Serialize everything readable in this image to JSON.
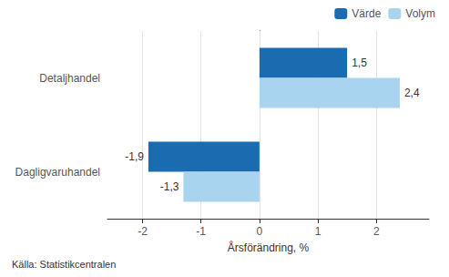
{
  "chart_data": {
    "type": "bar",
    "orientation": "horizontal",
    "categories": [
      "Detaljhandel",
      "Dagligvaruhandel"
    ],
    "series": [
      {
        "name": "Värde",
        "color": "#1B6BB0",
        "values": [
          1.5,
          -1.9
        ],
        "value_labels": [
          "1,5",
          "-1,9"
        ]
      },
      {
        "name": "Volym",
        "color": "#A8D4F0",
        "values": [
          2.4,
          -1.3
        ],
        "value_labels": [
          "2,4",
          "-1,3"
        ]
      }
    ],
    "xlabel": "Årsförändring, %",
    "xlim": [
      -2.6,
      2.9
    ],
    "xticks": [
      -2,
      -1,
      0,
      1,
      2
    ],
    "grid": true,
    "legend": "upper right",
    "data_labels": true,
    "source": "Källa: Statistikcentralen"
  }
}
